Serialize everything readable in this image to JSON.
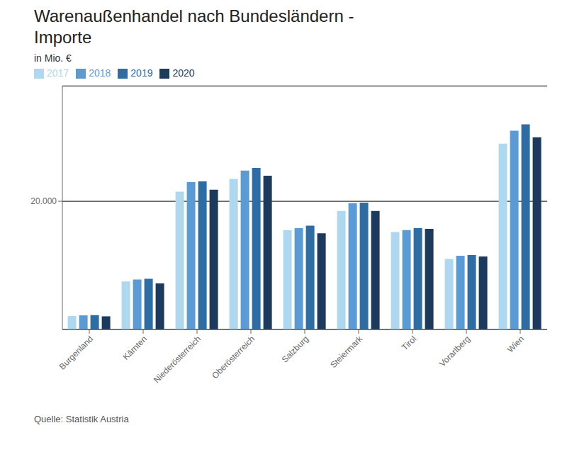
{
  "chart_data": {
    "type": "bar",
    "title": "Warenaußenhandel nach Bundesländern -\nImporte",
    "subtitle": "in Mio. €",
    "annotations": [
      "Quelle: Statistik Austria"
    ],
    "categories": [
      "Burgenland",
      "Kärnten",
      "Niederösterreich",
      "Oberösterreich",
      "Salzburg",
      "Steiermark",
      "Tirol",
      "Vorarlberg",
      "Wien"
    ],
    "series": [
      {
        "name": "2017",
        "color": "#ADD8F0",
        "values": [
          2100,
          7500,
          21500,
          23500,
          15500,
          18500,
          15200,
          11000,
          29000
        ]
      },
      {
        "name": "2018",
        "color": "#5B9BD5",
        "values": [
          2200,
          7800,
          23000,
          24800,
          15800,
          19700,
          15500,
          11500,
          31000
        ]
      },
      {
        "name": "2019",
        "color": "#2E6DA4",
        "values": [
          2250,
          7900,
          23100,
          25200,
          16200,
          19800,
          15800,
          11600,
          32000
        ]
      },
      {
        "name": "2020",
        "color": "#1B3A5C",
        "values": [
          2050,
          7200,
          21800,
          24000,
          15000,
          18500,
          15700,
          11400,
          30000
        ]
      }
    ],
    "ylim": [
      0,
      38000
    ],
    "yticks": [
      {
        "value": 20000,
        "label": "20.000"
      }
    ],
    "grid": true,
    "legend": "top"
  }
}
